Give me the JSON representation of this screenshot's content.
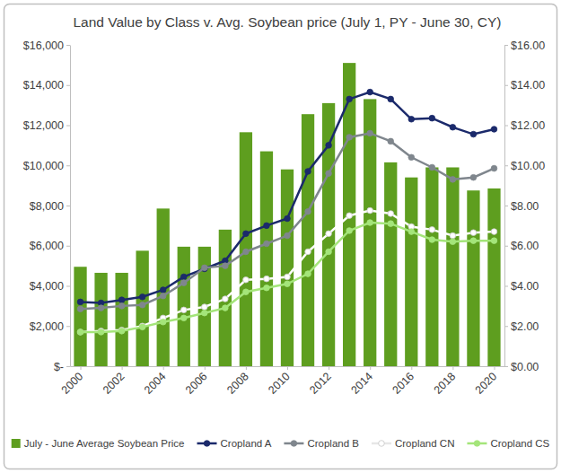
{
  "chart_data": {
    "type": "bar",
    "title": "Land Value by Class v. Avg. Soybean price (July 1, PY - June 30, CY)",
    "x": [
      2000,
      2001,
      2002,
      2003,
      2004,
      2005,
      2006,
      2007,
      2008,
      2009,
      2010,
      2011,
      2012,
      2013,
      2014,
      2015,
      2016,
      2017,
      2018,
      2019,
      2020
    ],
    "xlim": [
      1999.5,
      2020.5
    ],
    "xticks": [
      2000,
      2002,
      2004,
      2006,
      2008,
      2010,
      2012,
      2014,
      2016,
      2018,
      2020
    ],
    "ylim": [
      0,
      16000
    ],
    "yticks": [
      {
        "value": 0,
        "label": "$-"
      },
      {
        "value": 2000,
        "label": "$2,000"
      },
      {
        "value": 4000,
        "label": "$4,000"
      },
      {
        "value": 6000,
        "label": "$6,000"
      },
      {
        "value": 8000,
        "label": "$8,000"
      },
      {
        "value": 10000,
        "label": "$10,000"
      },
      {
        "value": 12000,
        "label": "$12,000"
      },
      {
        "value": 14000,
        "label": "$14,000"
      },
      {
        "value": 16000,
        "label": "$16,000"
      }
    ],
    "y2lim": [
      0,
      16
    ],
    "y2ticks": [
      {
        "value": 0,
        "label": "$0.00"
      },
      {
        "value": 2,
        "label": "$2.00"
      },
      {
        "value": 4,
        "label": "$4.00"
      },
      {
        "value": 6,
        "label": "$6.00"
      },
      {
        "value": 8,
        "label": "$8.00"
      },
      {
        "value": 10,
        "label": "$10.00"
      },
      {
        "value": 12,
        "label": "$12.00"
      },
      {
        "value": 14,
        "label": "$14.00"
      },
      {
        "value": 16,
        "label": "$16.00"
      }
    ],
    "grid": false,
    "legend": "bottom",
    "series": [
      {
        "name": "July - June Average Soybean Price",
        "type": "bar",
        "axis": "y2",
        "color": "#5e9e1f",
        "values": [
          4.95,
          4.65,
          4.65,
          5.75,
          7.85,
          5.95,
          5.95,
          6.8,
          11.65,
          10.7,
          9.8,
          12.55,
          13.1,
          15.1,
          13.3,
          10.15,
          9.4,
          9.9,
          9.9,
          8.75,
          8.85
        ]
      },
      {
        "name": "Cropland A",
        "type": "line",
        "color": "#1b2a6b",
        "marker": "circle",
        "line_style": "solid",
        "values": [
          3200,
          3150,
          3300,
          3450,
          3800,
          4450,
          4850,
          5250,
          6600,
          7000,
          7350,
          9700,
          11000,
          13300,
          13650,
          13300,
          12300,
          12350,
          11900,
          11550,
          11800
        ]
      },
      {
        "name": "Cropland B",
        "type": "line",
        "color": "#7f868d",
        "marker": "circle",
        "line_style": "solid",
        "values": [
          2850,
          2900,
          3000,
          3050,
          3500,
          4150,
          4900,
          5000,
          5700,
          6100,
          6500,
          7700,
          9600,
          11400,
          11600,
          11200,
          10400,
          9900,
          9300,
          9400,
          9850
        ]
      },
      {
        "name": "Cropland CN",
        "type": "line",
        "color": "#ffffff",
        "marker": "circle",
        "line_style": "solid",
        "values": [
          1700,
          1750,
          1800,
          2000,
          2400,
          2800,
          2950,
          3350,
          4300,
          4350,
          4450,
          5700,
          6600,
          7500,
          7750,
          7600,
          6950,
          6800,
          6500,
          6650,
          6700
        ]
      },
      {
        "name": "Cropland CS",
        "type": "line",
        "color": "#a4e57a",
        "marker": "circle",
        "line_style": "solid",
        "values": [
          1700,
          1700,
          1750,
          1950,
          2200,
          2400,
          2650,
          2900,
          3700,
          3900,
          4100,
          4600,
          5700,
          6750,
          7150,
          7100,
          6700,
          6300,
          6200,
          6250,
          6250
        ]
      }
    ]
  }
}
